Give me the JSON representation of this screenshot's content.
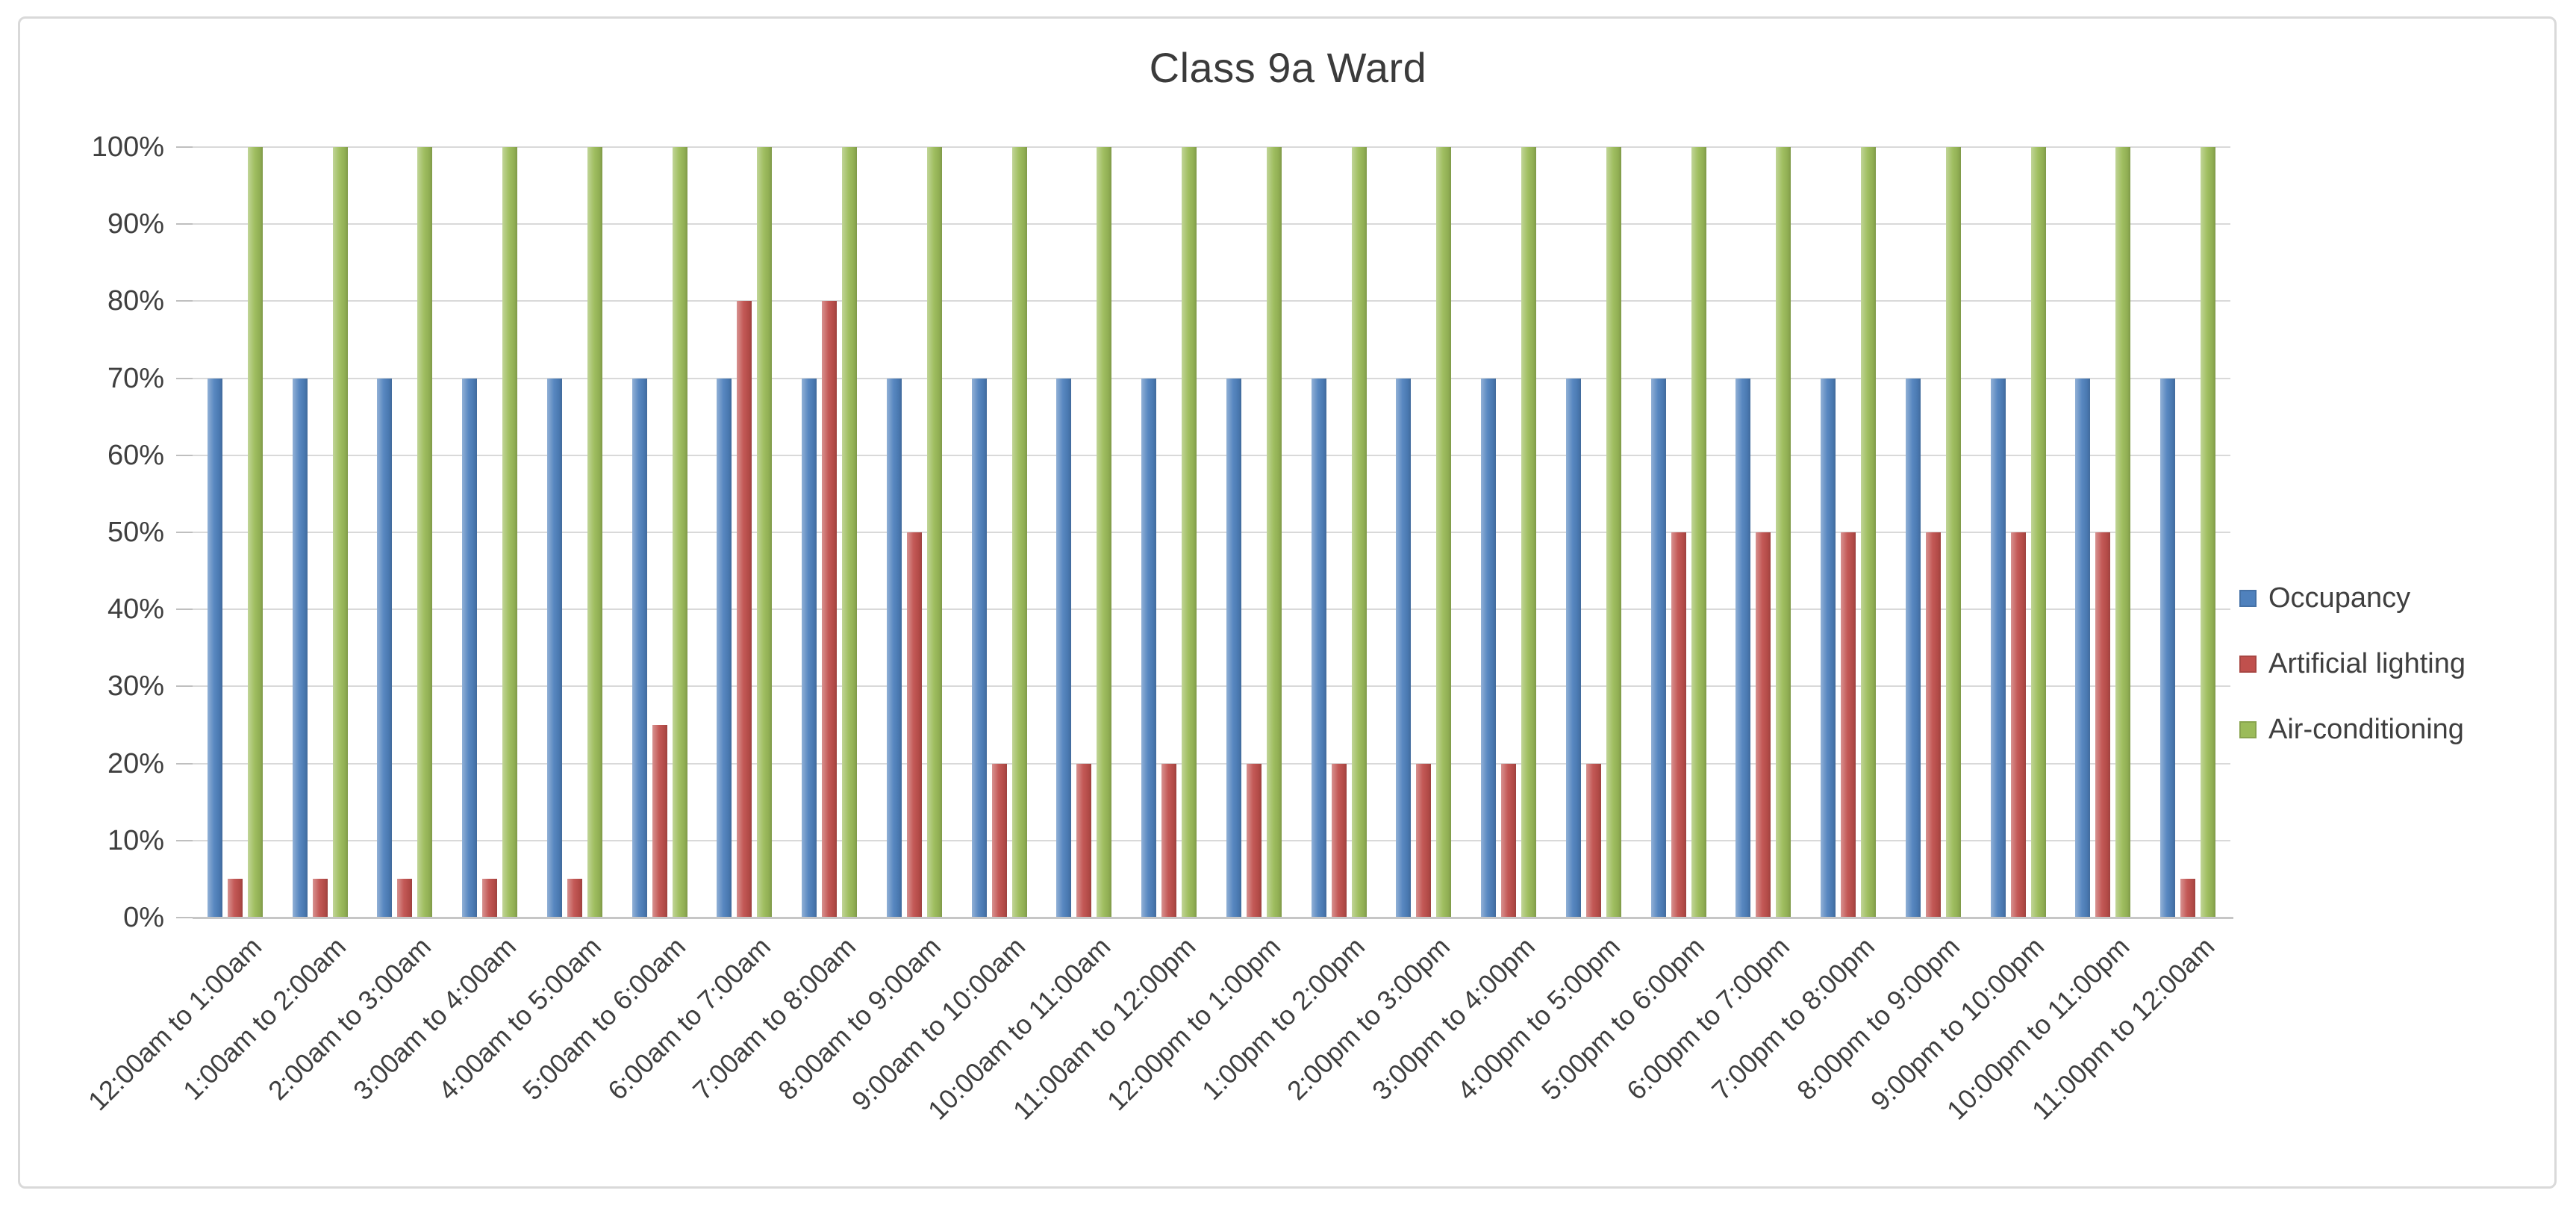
{
  "chart_data": {
    "type": "bar",
    "title": "Class 9a Ward",
    "categories": [
      "12:00am to 1:00am",
      "1:00am to 2:00am",
      "2:00am to 3:00am",
      "3:00am to 4:00am",
      "4:00am to 5:00am",
      "5:00am to 6:00am",
      "6:00am to 7:00am",
      "7:00am to 8:00am",
      "8:00am to 9:00am",
      "9:00am to 10:00am",
      "10:00am to 11:00am",
      "11:00am to 12:00pm",
      "12:00pm to 1:00pm",
      "1:00pm to 2:00pm",
      "2:00pm to 3:00pm",
      "3:00pm to 4:00pm",
      "4:00pm to 5:00pm",
      "5:00pm to 6:00pm",
      "6:00pm to 7:00pm",
      "7:00pm to 8:00pm",
      "8:00pm to 9:00pm",
      "9:00pm to 10:00pm",
      "10:00pm to 11:00pm",
      "11:00pm to 12:00am"
    ],
    "series": [
      {
        "name": "Occupancy",
        "color": "#4F81BD",
        "values": [
          70,
          70,
          70,
          70,
          70,
          70,
          70,
          70,
          70,
          70,
          70,
          70,
          70,
          70,
          70,
          70,
          70,
          70,
          70,
          70,
          70,
          70,
          70,
          70
        ]
      },
      {
        "name": "Artificial lighting",
        "color": "#C0504D",
        "values": [
          5,
          5,
          5,
          5,
          5,
          25,
          80,
          80,
          50,
          20,
          20,
          20,
          20,
          20,
          20,
          20,
          20,
          50,
          50,
          50,
          50,
          50,
          50,
          5
        ]
      },
      {
        "name": "Air-conditioning",
        "color": "#9BBB59",
        "values": [
          100,
          100,
          100,
          100,
          100,
          100,
          100,
          100,
          100,
          100,
          100,
          100,
          100,
          100,
          100,
          100,
          100,
          100,
          100,
          100,
          100,
          100,
          100,
          100
        ]
      }
    ],
    "xlabel": "",
    "ylabel": "",
    "y_axis": {
      "min": 0,
      "max": 100,
      "step": 10,
      "tick_labels": [
        "0%",
        "10%",
        "20%",
        "30%",
        "40%",
        "50%",
        "60%",
        "70%",
        "80%",
        "90%",
        "100%"
      ]
    },
    "grid": true,
    "legend_position": "right",
    "colors": {
      "gridline": "#d9d9d9",
      "axis": "#bfbfbf",
      "text": "#3f3f3f"
    }
  }
}
